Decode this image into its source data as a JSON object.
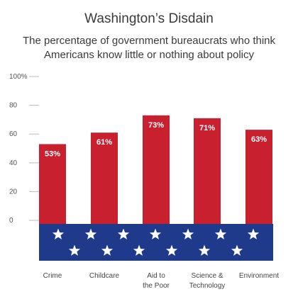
{
  "chart_data": {
    "type": "bar",
    "title": "Washington’s Disdain",
    "subtitle_lines": [
      "The percentage of government bureaucrats who think",
      "Americans know little or nothing about policy"
    ],
    "categories": [
      [
        "Crime"
      ],
      [
        "Childcare"
      ],
      [
        "Aid to",
        "the Poor"
      ],
      [
        "Science &",
        "Technology"
      ],
      [
        "Environment"
      ]
    ],
    "values": [
      53,
      61,
      73,
      71,
      63
    ],
    "value_labels": [
      "53%",
      "61%",
      "73%",
      "71%",
      "63%"
    ],
    "y_ticks": [
      "100%",
      "80",
      "60",
      "40",
      "20",
      "0"
    ],
    "ylim": [
      0,
      100
    ],
    "grid": false,
    "colors": {
      "bar": "#c8202f",
      "flag_band": "#1f3a8a",
      "star": "#ffffff",
      "tick_dash": "#bbbbbb",
      "text": "#3a3a3a"
    }
  }
}
